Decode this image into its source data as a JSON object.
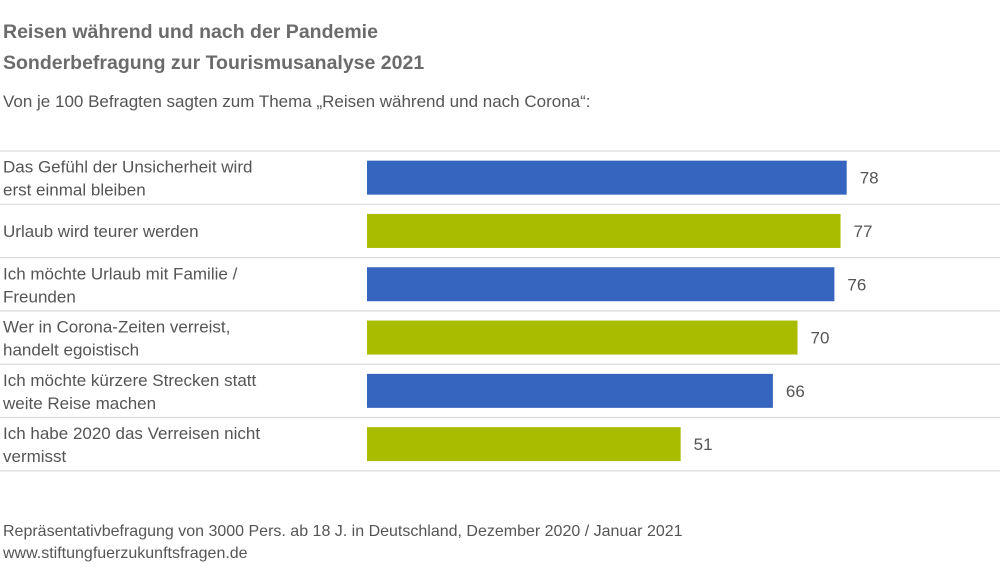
{
  "header": {
    "title_line1": "Reisen während und nach der Pandemie",
    "title_line2": "Sonderbefragung zur Tourismusanalyse 2021",
    "subtitle": "Von je 100 Befragten sagten zum Thema „Reisen während und nach Corona“:"
  },
  "footer": {
    "note": "Repräsentativbefragung von 3000 Pers. ab 18 J. in Deutschland, Dezember 2020 / Januar 2021",
    "source": "www.stiftungfuerzukunftsfragen.de"
  },
  "chart_data": {
    "type": "bar",
    "orientation": "horizontal",
    "categories": [
      [
        "Das Gefühl der Unsicherheit wird",
        "erst einmal bleiben"
      ],
      [
        "Urlaub wird teurer werden"
      ],
      [
        "Ich möchte Urlaub mit Familie /",
        "Freunden"
      ],
      [
        "Wer in Corona-Zeiten verreist,",
        "handelt egoistisch"
      ],
      [
        "Ich möchte kürzere Strecken statt",
        "weite Reise machen"
      ],
      [
        "Ich habe 2020 das Verreisen nicht",
        "vermisst"
      ]
    ],
    "values": [
      78,
      77,
      76,
      70,
      66,
      51
    ],
    "colors": [
      "#3565be",
      "#a9bc00",
      "#3565be",
      "#a9bc00",
      "#3565be",
      "#a9bc00"
    ],
    "xlim": [
      0,
      100
    ],
    "grid": false,
    "legend": "none"
  }
}
